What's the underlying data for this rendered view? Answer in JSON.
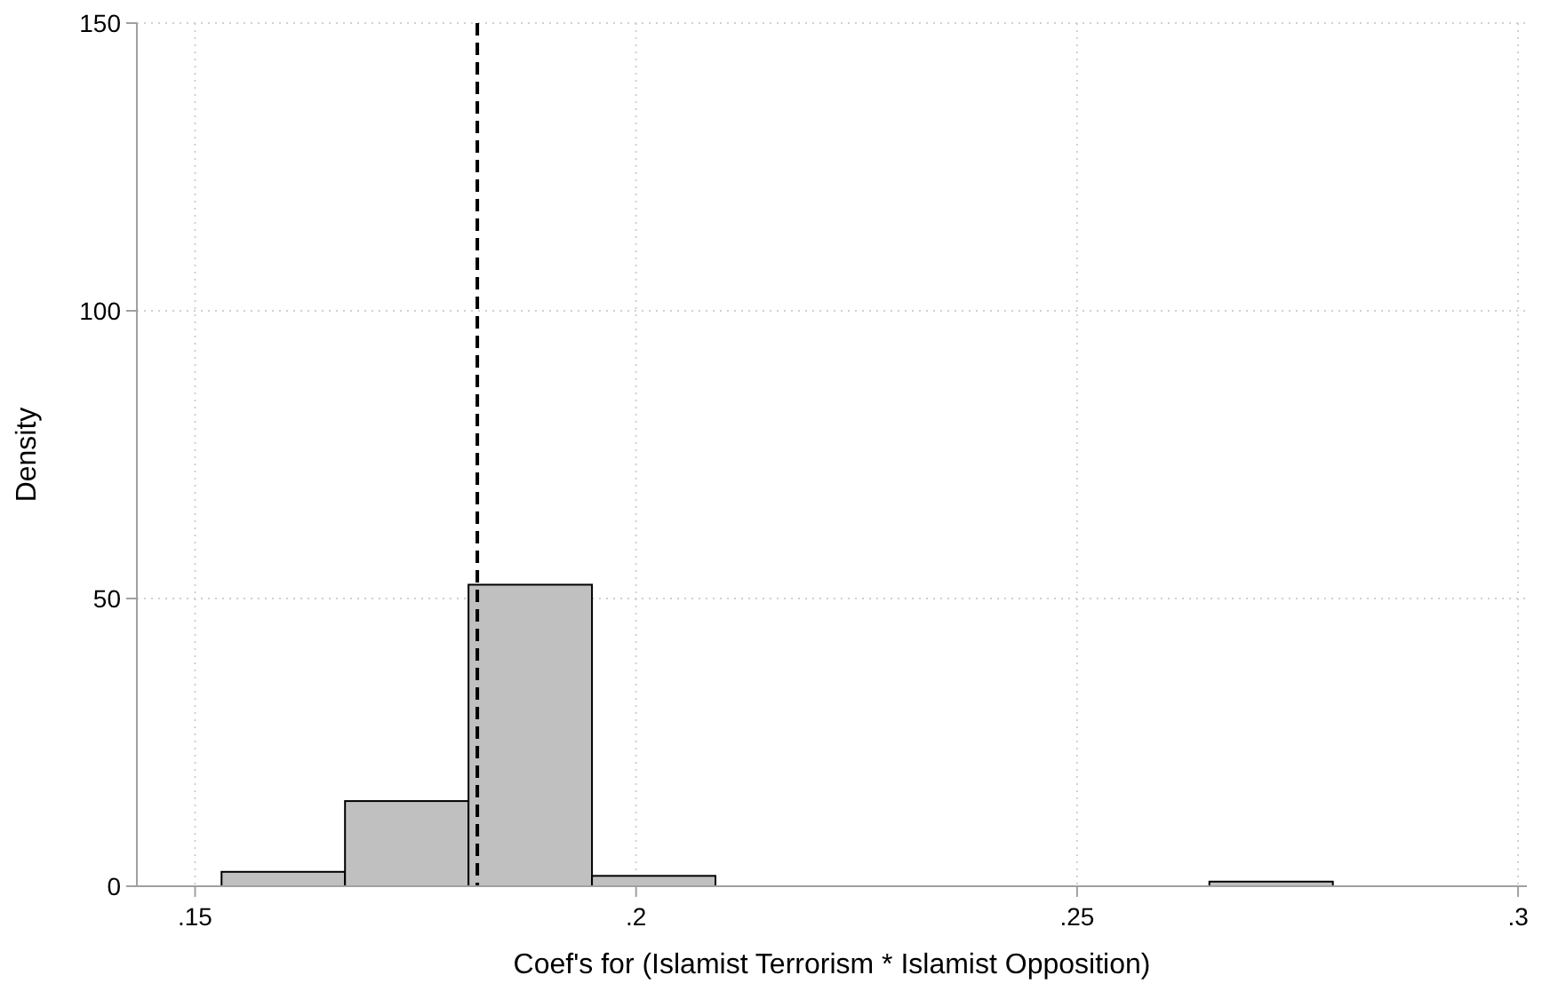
{
  "chart_data": {
    "type": "histogram",
    "xlabel": "Coef's for (Islamist Terrorism * Islamist Opposition)",
    "ylabel": "Density",
    "bins": [
      0.153,
      0.167,
      0.181,
      0.195,
      0.209,
      0.223,
      0.237,
      0.251,
      0.265,
      0.279
    ],
    "values": [
      2.5,
      14.8,
      52.4,
      1.8,
      0,
      0,
      0,
      0,
      0.8
    ],
    "color": "#c0c0c0",
    "xlim": [
      0.1434,
      0.301
    ],
    "ylim": [
      0,
      150
    ],
    "xticks": [
      {
        "value": 0.15,
        "label": ".15"
      },
      {
        "value": 0.2,
        "label": ".2"
      },
      {
        "value": 0.25,
        "label": ".25"
      },
      {
        "value": 0.3,
        "label": ".3"
      }
    ],
    "yticks": [
      0,
      50,
      100,
      150
    ],
    "grid": true,
    "ref_lines": [
      {
        "axis": "x",
        "value": 0.182,
        "color": "#000000",
        "line_style": "dashed"
      }
    ]
  }
}
